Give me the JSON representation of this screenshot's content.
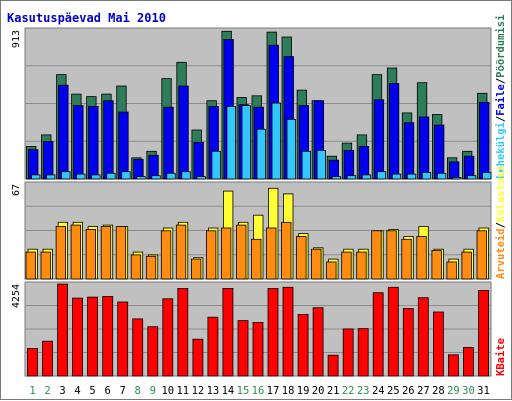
{
  "title": "Kasutuspäevad Mai 2010",
  "colors": {
    "background": "#ffffff",
    "plot_bg": "#c0c0c0",
    "grid": "#8c8c8c",
    "title": "#0000cc",
    "pages": "#2e7d5a",
    "files": "#0000ee",
    "hits_bg": "#30c8ff",
    "visits": "#ff8c10",
    "unique": "#ffff33",
    "kbytes": "#ff0000",
    "day_weekday": "#000000",
    "day_weekend": "#2e8b57",
    "sep": "#000000"
  },
  "chart_data": [
    {
      "type": "bar",
      "title": "",
      "ylabel_max": "913",
      "ylim": [
        0,
        913
      ],
      "legend": {
        "parts": [
          {
            "text": "Pöördumisi",
            "color": "#2e7d5a"
          },
          {
            "text": "Faile",
            "color": "#0000ee"
          },
          {
            "text": "Lehekülgi",
            "color": "#30c8ff"
          }
        ],
        "separator": "/"
      },
      "categories": [
        "1",
        "2",
        "3",
        "4",
        "5",
        "6",
        "7",
        "8",
        "9",
        "10",
        "11",
        "12",
        "13",
        "14",
        "15",
        "16",
        "17",
        "18",
        "19",
        "20",
        "21",
        "22",
        "23",
        "24",
        "25",
        "26",
        "27",
        "28",
        "29",
        "30",
        "31"
      ],
      "series": [
        {
          "name": "Pöördumisi",
          "values": [
            200,
            270,
            640,
            520,
            505,
            520,
            570,
            130,
            170,
            615,
            715,
            300,
            480,
            905,
            500,
            510,
            900,
            870,
            545,
            480,
            140,
            220,
            270,
            640,
            680,
            405,
            590,
            395,
            130,
            170,
            525
          ]
        },
        {
          "name": "Faile",
          "values": [
            180,
            230,
            575,
            450,
            445,
            480,
            410,
            120,
            145,
            440,
            570,
            225,
            445,
            855,
            455,
            440,
            820,
            750,
            450,
            480,
            115,
            175,
            200,
            485,
            585,
            345,
            380,
            330,
            105,
            140,
            470
          ]
        },
        {
          "name": "Lehekülgi",
          "values": [
            25,
            25,
            45,
            30,
            25,
            35,
            45,
            15,
            20,
            35,
            45,
            15,
            170,
            445,
            450,
            305,
            465,
            365,
            170,
            175,
            15,
            20,
            25,
            45,
            30,
            30,
            40,
            35,
            10,
            20,
            40
          ]
        }
      ]
    },
    {
      "type": "bar",
      "title": "",
      "ylabel_max": "67",
      "ylim": [
        0,
        67
      ],
      "legend": {
        "parts": [
          {
            "text": "Külastusi",
            "color": "#ffff33"
          },
          {
            "text": "Arvuteid",
            "color": "#ff8c10"
          }
        ],
        "separator": "/"
      },
      "categories": [
        "1",
        "2",
        "3",
        "4",
        "5",
        "6",
        "7",
        "8",
        "9",
        "10",
        "11",
        "12",
        "13",
        "14",
        "15",
        "16",
        "17",
        "18",
        "19",
        "20",
        "21",
        "22",
        "23",
        "24",
        "25",
        "26",
        "27",
        "28",
        "29",
        "30",
        "31"
      ],
      "series": [
        {
          "name": "Külastusi",
          "values": [
            21,
            21,
            40,
            40,
            37,
            38,
            37,
            19,
            17,
            36,
            40,
            15,
            36,
            62,
            40,
            45,
            64,
            60,
            32,
            22,
            14,
            21,
            21,
            34,
            35,
            30,
            37,
            21,
            14,
            21,
            36
          ]
        },
        {
          "name": "Arvuteid",
          "values": [
            19,
            19,
            37,
            38,
            35,
            37,
            37,
            17,
            16,
            34,
            38,
            14,
            34,
            36,
            38,
            28,
            36,
            40,
            30,
            21,
            12,
            19,
            19,
            34,
            34,
            28,
            30,
            20,
            12,
            19,
            34
          ]
        }
      ]
    },
    {
      "type": "bar",
      "title": "",
      "ylabel_max": "4254",
      "ylim": [
        0,
        4254
      ],
      "legend": {
        "parts": [
          {
            "text": "KBaite",
            "color": "#ff0000"
          }
        ],
        "separator": "/"
      },
      "categories": [
        "1",
        "2",
        "3",
        "4",
        "5",
        "6",
        "7",
        "8",
        "9",
        "10",
        "11",
        "12",
        "13",
        "14",
        "15",
        "16",
        "17",
        "18",
        "19",
        "20",
        "21",
        "22",
        "23",
        "24",
        "25",
        "26",
        "27",
        "28",
        "29",
        "30",
        "31"
      ],
      "series": [
        {
          "name": "KBaite",
          "values": [
            1270,
            1610,
            4250,
            3600,
            3650,
            3680,
            3420,
            2640,
            2280,
            3570,
            4050,
            1700,
            2720,
            4050,
            2560,
            2480,
            4050,
            4100,
            2850,
            3160,
            960,
            2180,
            2190,
            3850,
            4100,
            3120,
            3620,
            2960,
            980,
            1320,
            3960
          ]
        }
      ]
    }
  ],
  "weekend_days": [
    "1",
    "2",
    "8",
    "9",
    "15",
    "16",
    "22",
    "23",
    "29",
    "30"
  ]
}
